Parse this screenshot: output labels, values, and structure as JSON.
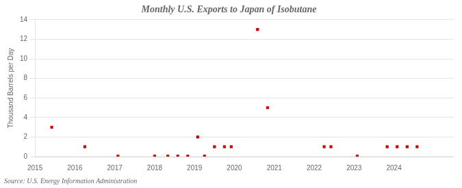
{
  "chart_data": {
    "type": "scatter",
    "title": "Monthly U.S. Exports to Japan of Isobutane",
    "ylabel": "Thousand Barrels per Day",
    "annotations": [
      "Source: U.S. Energy Information Administration"
    ],
    "x": [
      2015.42,
      2016.25,
      2017.08,
      2018.0,
      2018.33,
      2018.58,
      2018.83,
      2019.08,
      2019.25,
      2019.5,
      2019.75,
      2019.92,
      2020.58,
      2020.83,
      2022.25,
      2022.42,
      2023.08,
      2023.83,
      2024.08,
      2024.33,
      2024.58
    ],
    "values": [
      3.0,
      1.0,
      0.05,
      0.05,
      0.05,
      0.05,
      0.05,
      2.0,
      0.05,
      1.0,
      1.0,
      1.0,
      13.0,
      5.0,
      1.0,
      1.0,
      0.05,
      1.0,
      1.0,
      1.0,
      1.0
    ],
    "color": "#cc0000",
    "marker": "square",
    "xlim": [
      2015,
      2025.5
    ],
    "xticks": [
      2015,
      2016,
      2017,
      2018,
      2019,
      2020,
      2021,
      2022,
      2023,
      2024
    ],
    "ylim": [
      0,
      14
    ],
    "yticks": [
      0,
      2,
      4,
      6,
      8,
      10,
      12,
      14
    ],
    "grid": "y"
  }
}
